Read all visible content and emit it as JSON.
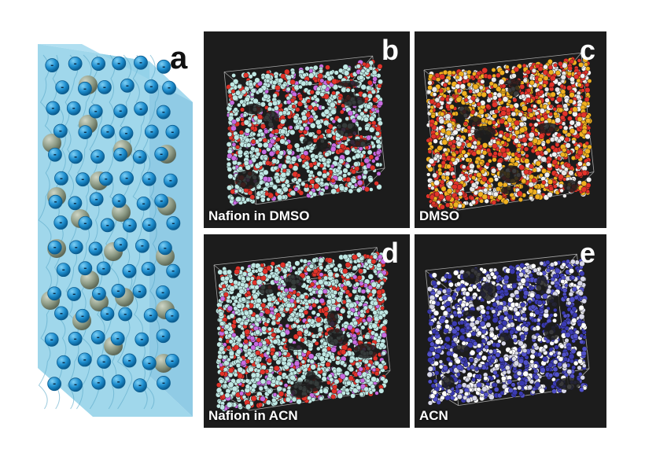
{
  "figure": {
    "panel_a": {
      "letter": "a"
    },
    "panels": [
      {
        "id": "b",
        "letter": "b",
        "label": "Nafion in DMSO",
        "colors": [
          "#bfe8e4",
          "#bfe8e4",
          "#bfe8e4",
          "#bfe8e4",
          "#bfe8e4",
          "#e1332a",
          "#e1332a",
          "#c86be0"
        ]
      },
      {
        "id": "c",
        "letter": "c",
        "label": "DMSO",
        "colors": [
          "#e1332a",
          "#f0b020",
          "#e8e8e8",
          "#e1332a",
          "#f0b020",
          "#f3f3f3"
        ]
      },
      {
        "id": "d",
        "letter": "d",
        "label": "Nafion in ACN",
        "colors": [
          "#bfe8e4",
          "#bfe8e4",
          "#bfe8e4",
          "#bfe8e4",
          "#bfe8e4",
          "#bfe8e4",
          "#e1332a",
          "#e1332a",
          "#c86be0"
        ]
      },
      {
        "id": "e",
        "letter": "e",
        "label": "ACN",
        "colors": [
          "#3a3ab0",
          "#5050c8",
          "#d8d8e8",
          "#ffffff"
        ]
      }
    ],
    "ion_symbol": "-",
    "colors": {
      "membrane": "#8fd0e8",
      "anion": "#1d8fd0",
      "cation": "#8c9a86",
      "panel_bg": "#1c1c1c"
    }
  }
}
